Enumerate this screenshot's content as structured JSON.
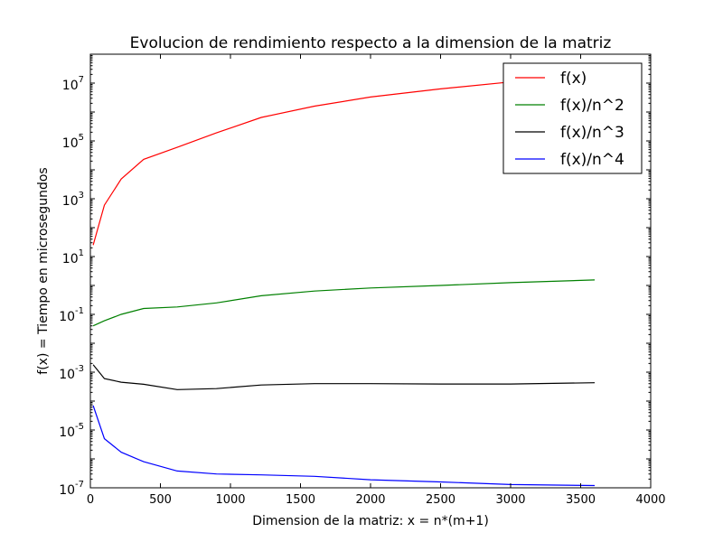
{
  "chart_data": {
    "type": "line",
    "title": "Evolucion de rendimiento respecto a la dimension de la matriz",
    "xlabel": "Dimension de la matriz: x = n*(m+1)",
    "ylabel": "f(x) = Tiempo en microsegundos",
    "xlim": [
      0,
      4000
    ],
    "ylim": [
      1e-07,
      100000000.0
    ],
    "yscale": "log",
    "xticks": [
      "0",
      "500",
      "1000",
      "1500",
      "2000",
      "2500",
      "3000",
      "3500",
      "4000"
    ],
    "yticks": [
      {
        "base": "10",
        "exp": "-7"
      },
      {
        "base": "10",
        "exp": "-5"
      },
      {
        "base": "10",
        "exp": "-3"
      },
      {
        "base": "10",
        "exp": "-1"
      },
      {
        "base": "10",
        "exp": "1"
      },
      {
        "base": "10",
        "exp": "3"
      },
      {
        "base": "10",
        "exp": "5"
      },
      {
        "base": "10",
        "exp": "7"
      }
    ],
    "grid": false,
    "legend_position": "top-right",
    "x": [
      20,
      100,
      220,
      380,
      620,
      900,
      1220,
      1600,
      2000,
      2500,
      3000,
      3600
    ],
    "series": [
      {
        "name": "f(x)",
        "color": "#ff0000",
        "values": [
          25,
          600,
          4800,
          23000,
          60000,
          190000,
          650000,
          1600000,
          3300000,
          6300000,
          11000000,
          20000000
        ]
      },
      {
        "name": "f(x)/n^2",
        "color": "#008000",
        "values": [
          0.04,
          0.06,
          0.1,
          0.16,
          0.18,
          0.25,
          0.44,
          0.64,
          0.82,
          1.0,
          1.25,
          1.55
        ]
      },
      {
        "name": "f(x)/n^3",
        "color": "#000000",
        "values": [
          0.0018,
          0.0006,
          0.00045,
          0.00038,
          0.00025,
          0.00027,
          0.00036,
          0.0004,
          0.0004,
          0.00039,
          0.00039,
          0.00043
        ]
      },
      {
        "name": "f(x)/n^4",
        "color": "#0000ff",
        "values": [
          7e-05,
          5e-06,
          1.7e-06,
          8e-07,
          3.8e-07,
          3e-07,
          2.8e-07,
          2.5e-07,
          1.9e-07,
          1.6e-07,
          1.3e-07,
          1.2e-07
        ]
      }
    ]
  }
}
